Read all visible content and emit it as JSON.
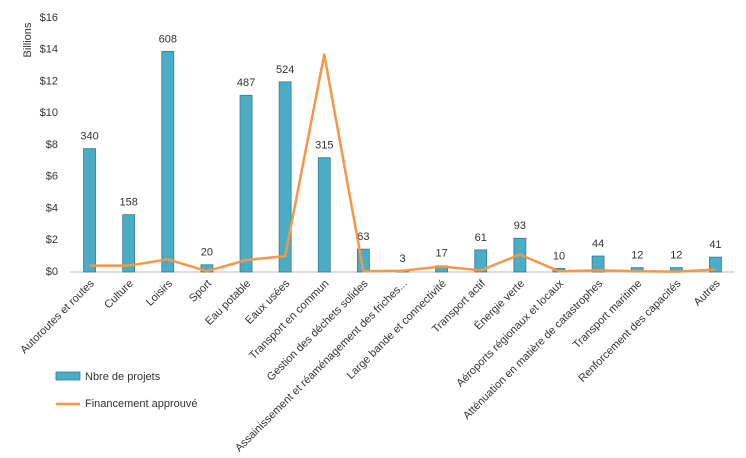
{
  "chart_data": {
    "type": "bar-line",
    "y_axis_title": "Billions",
    "categories": [
      "Autoroutes et routes",
      "Culture",
      "Loisirs",
      "Sport",
      "Eau potable",
      "Eaux usées",
      "Transport en commun",
      "Gestion des déchets solides",
      "Assainissement et réaménagement des friches...",
      "Large bande et connectivité",
      "Transport actif",
      "Énergie verte",
      "Aéroports régionaux et locaux",
      "Atténuation en matière de catastrophes",
      "Transport maritime",
      "Renforcement des capacités",
      "Autres"
    ],
    "series": [
      {
        "name": "Nbre de projets",
        "type": "bar",
        "axis": "y2",
        "color": "#4bacc6",
        "values": [
          340,
          158,
          608,
          20,
          487,
          524,
          315,
          63,
          3,
          17,
          61,
          93,
          10,
          44,
          12,
          12,
          41
        ]
      },
      {
        "name": "Financement approuvé",
        "type": "line",
        "color": "#f79646",
        "values": [
          0.4,
          0.4,
          0.8,
          0.05,
          0.75,
          1.0,
          13.7,
          0.05,
          0.08,
          0.35,
          0.1,
          1.1,
          0.05,
          0.1,
          0.05,
          0.02,
          0.15
        ]
      }
    ],
    "ylim": [
      0,
      16
    ],
    "yticks": [
      {
        "value": 0,
        "label": "$0"
      },
      {
        "value": 2,
        "label": "$2"
      },
      {
        "value": 4,
        "label": "$4"
      },
      {
        "value": 6,
        "label": "$6"
      },
      {
        "value": 8,
        "label": "$8"
      },
      {
        "value": 10,
        "label": "$10"
      },
      {
        "value": 12,
        "label": "$12"
      },
      {
        "value": 14,
        "label": "$14"
      },
      {
        "value": 16,
        "label": "$16"
      }
    ],
    "y2lim": [
      0,
      700
    ]
  }
}
